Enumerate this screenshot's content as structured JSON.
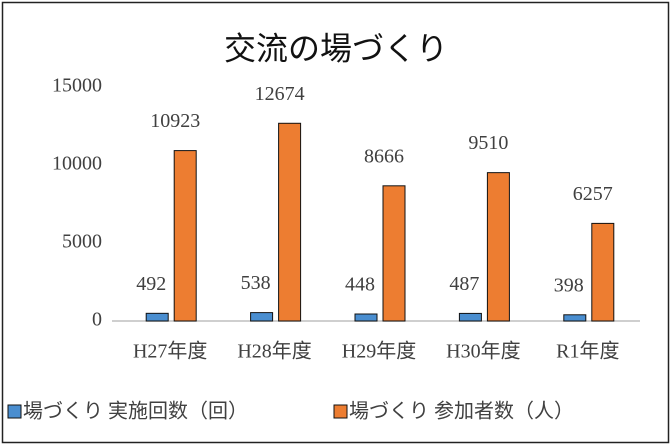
{
  "chart_data": {
    "type": "bar",
    "title": "交流の場づくり",
    "categories": [
      "H27年度",
      "H28年度",
      "H29年度",
      "H30年度",
      "R1年度"
    ],
    "series": [
      {
        "name": "場づくり 実施回数（回）",
        "color": "#4a8ed0",
        "values": [
          492,
          538,
          448,
          487,
          398
        ]
      },
      {
        "name": "場づくり 参加者数（人）",
        "color": "#ed7d31",
        "values": [
          10923,
          12674,
          8666,
          9510,
          6257
        ]
      }
    ],
    "ylim": [
      0,
      15000
    ],
    "yticks": [
      0,
      5000,
      10000,
      15000
    ],
    "grid": false,
    "legend": "bottom"
  }
}
